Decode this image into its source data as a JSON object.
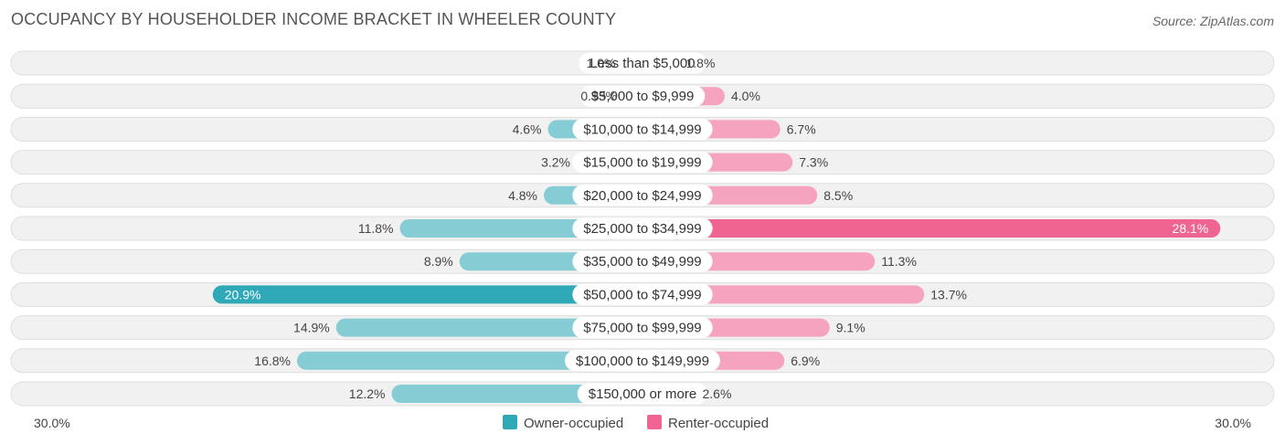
{
  "header": {
    "title": "OCCUPANCY BY HOUSEHOLDER INCOME BRACKET IN WHEELER COUNTY",
    "source": "Source: ZipAtlas.com"
  },
  "colors": {
    "owner": "#2fa9b8",
    "owner_light": "#86ccd5",
    "renter": "#f06491",
    "renter_light": "#f6a3bf",
    "row_bg": "#f1f1f1",
    "row_border": "#dedede"
  },
  "chart_data": {
    "type": "bar",
    "orientation": "horizontal-diverging",
    "title": "OCCUPANCY BY HOUSEHOLDER INCOME BRACKET IN WHEELER COUNTY",
    "categories": [
      "Less than $5,000",
      "$5,000 to $9,999",
      "$10,000 to $14,999",
      "$15,000 to $19,999",
      "$20,000 to $24,999",
      "$25,000 to $34,999",
      "$35,000 to $49,999",
      "$50,000 to $74,999",
      "$75,000 to $99,999",
      "$100,000 to $149,999",
      "$150,000 or more"
    ],
    "series": [
      {
        "name": "Owner-occupied",
        "values": [
          1.0,
          0.93,
          4.6,
          3.2,
          4.8,
          11.8,
          8.9,
          20.9,
          14.9,
          16.8,
          12.2
        ],
        "labels": [
          "1.0%",
          "0.93%",
          "4.6%",
          "3.2%",
          "4.8%",
          "11.8%",
          "8.9%",
          "20.9%",
          "14.9%",
          "16.8%",
          "12.2%"
        ]
      },
      {
        "name": "Renter-occupied",
        "values": [
          1.8,
          4.0,
          6.7,
          7.3,
          8.5,
          28.1,
          11.3,
          13.7,
          9.1,
          6.9,
          2.6
        ],
        "labels": [
          "1.8%",
          "4.0%",
          "6.7%",
          "7.3%",
          "8.5%",
          "28.1%",
          "11.3%",
          "13.7%",
          "9.1%",
          "6.9%",
          "2.6%"
        ]
      }
    ],
    "xlim": [
      -30,
      30
    ],
    "axis_left_label": "30.0%",
    "axis_right_label": "30.0%",
    "legend": [
      "Owner-occupied",
      "Renter-occupied"
    ],
    "legend_position": "bottom-center",
    "unit": "%"
  }
}
